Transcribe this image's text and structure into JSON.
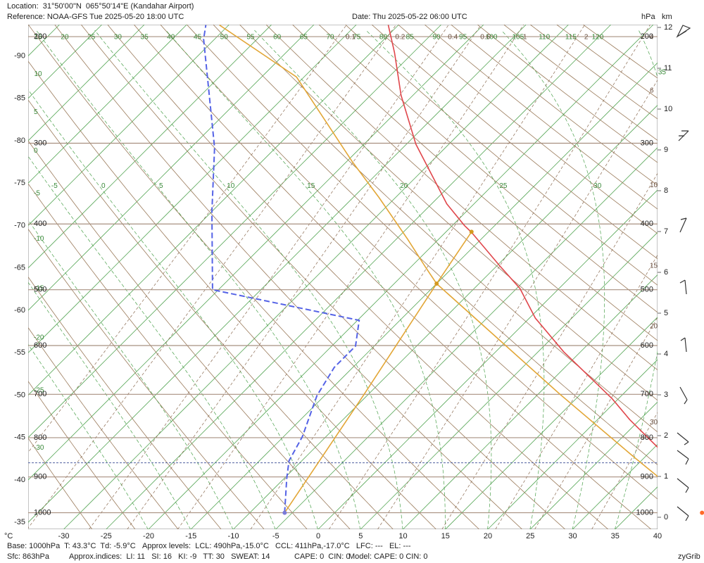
{
  "header": {
    "location": "Location:  31°50'00\"N  065°50'14\"E (Kandahar Airport)",
    "reference": "Reference: NOAA-GFS Tue 2025-05-20 18:00 UTC",
    "date": "Date: Thu 2025-05-22 06:00 UTC"
  },
  "footer": {
    "base": "Base: 1000hPa  T: 43.3°C  Td: -5.9°C",
    "levels": "Approx levels:  LCL: 490hPa,-15.0°C   CCL: 411hPa,-17.0°C   LFC: ---   EL: ---",
    "sfc": "Sfc: 863hPa",
    "indices": "Approx.indices:  LI: 11   SI: 16   KI: -9   TT: 30   SWEAT: 14",
    "cape": "CAPE: 0  CIN: 0",
    "model": "Model: CAPE: 0 CIN: 0",
    "brand": "zyGrib"
  },
  "chart_data": {
    "type": "skew-t",
    "x_label": "°C",
    "pressure_unit": "hPa",
    "height_unit": "km",
    "xticks": [
      -30,
      -25,
      -20,
      -15,
      -10,
      -5,
      0,
      5,
      10,
      15,
      20,
      25,
      30,
      35,
      40
    ],
    "isotherm_labels": [
      -90,
      -85,
      -80,
      -75,
      -70,
      -65,
      -60,
      -55,
      -50,
      -45,
      -40,
      -35
    ],
    "pressure_ticks": [
      200,
      300,
      400,
      500,
      600,
      700,
      800,
      900,
      1000
    ],
    "km_ticks": [
      0,
      1,
      2,
      3,
      4,
      5,
      6,
      7,
      8,
      9,
      10,
      11,
      12
    ],
    "dry_adiabats": [
      -30,
      -25,
      -20,
      -15,
      -10,
      -5,
      0,
      5,
      10,
      15,
      20,
      25,
      30,
      35,
      40,
      45,
      50,
      55,
      60,
      65,
      70,
      75,
      80,
      85,
      90,
      95,
      100,
      105,
      110,
      115,
      120
    ],
    "moist_adiabats": [
      -20,
      -15,
      -10,
      -5,
      0,
      5,
      10,
      15,
      20,
      25,
      30,
      35
    ],
    "mixing_ratios": [
      0.1,
      0.2,
      0.4,
      0.6,
      1,
      2,
      4,
      6,
      10,
      15,
      20,
      30
    ],
    "surface_pressure": 863,
    "series": [
      {
        "color": "#e0474c",
        "dashed": false,
        "pressure": [
          1000,
          823,
          757,
          710,
          612,
          549,
          498,
          462,
          412,
          402,
          373,
          301,
          251,
          213,
          191
        ],
        "values": [
          43.3,
          30.3,
          23.8,
          19.3,
          8.0,
          0.7,
          -4.6,
          -9.6,
          -16.9,
          -18.6,
          -23.2,
          -33.9,
          -41.4,
          -47.2,
          -51.2
        ]
      },
      {
        "color": "#5563e6",
        "dashed": true,
        "pressure": [
          1000,
          904,
          858,
          797,
          703,
          643,
          601,
          553,
          500,
          383,
          305,
          202,
          191
        ],
        "values": [
          -5.9,
          -9.7,
          -11.5,
          -12.8,
          -15.9,
          -17.2,
          -17.2,
          -19.8,
          -40.7,
          -50.0,
          -57.2,
          -71.3,
          -72.7
        ]
      },
      {
        "color": "#e2a636",
        "dashed": false,
        "pressure": [
          191,
          234,
          321,
          365,
          422,
          464,
          490,
          700,
          850,
          1000
        ],
        "values": [
          -71.1,
          -55.9,
          -39.3,
          -31.9,
          -23.6,
          -18.2,
          -15,
          12.6,
          28.9,
          43.3
        ]
      },
      {
        "color": "#e2a636",
        "dashed": false,
        "pressure": [
          490,
          700,
          1000
        ],
        "values": [
          -15,
          -10.5,
          -5.9
        ]
      },
      {
        "color": "#e2a636",
        "dashed": false,
        "pressure": [
          411,
          490
        ],
        "values": [
          -17,
          -15
        ]
      }
    ],
    "markers": [
      {
        "pressure": 490,
        "value": -15,
        "color": "#d49a20"
      },
      {
        "pressure": 411,
        "value": -17,
        "color": "#d49a20"
      },
      {
        "pressure": 1000,
        "value": 43.3,
        "color": "#ff6a2a"
      },
      {
        "pressure": 1000,
        "value": -5.9,
        "color": "#7a7ad8"
      }
    ]
  }
}
